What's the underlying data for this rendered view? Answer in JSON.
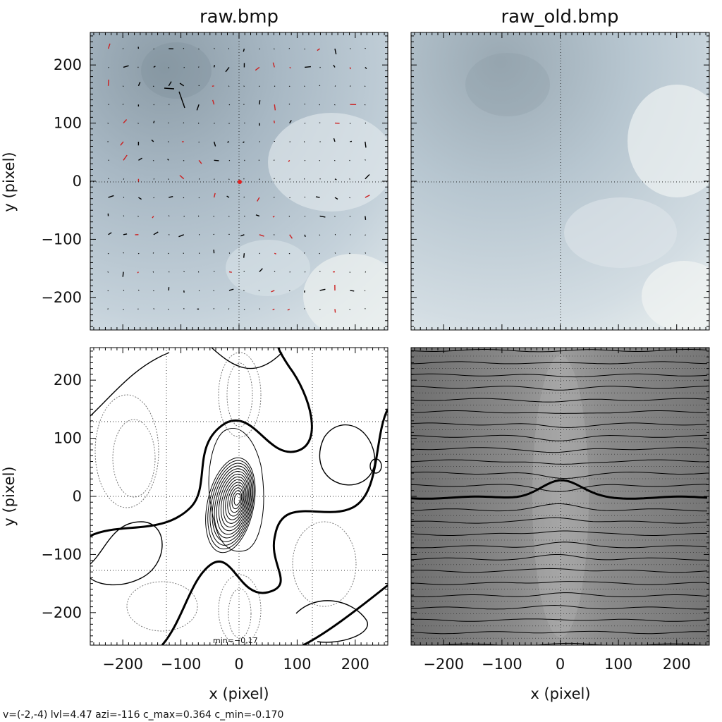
{
  "status_line": "v=(-2,-4) lvl=4.47 azi=-116 c_max=0.364 c_min=-0.170",
  "chart_data": [
    {
      "type": "image",
      "title": "raw.bmp",
      "xlabel": "",
      "ylabel": "y (pixel)",
      "xlim": [
        -256,
        256
      ],
      "ylim": [
        -256,
        256
      ],
      "yticks": [
        "200",
        "100",
        "0",
        "−100",
        "−200"
      ],
      "grid": "dotted crosshair at x=0, y=0",
      "overlay": "displacement vectors (black and red)",
      "marker": {
        "x": 0,
        "y": 0,
        "color": "#e02020"
      },
      "colors": {
        "sky": "#aebfcc",
        "vector": "#000000",
        "vector_alt": "#cc1f1f"
      }
    },
    {
      "type": "image",
      "title": "raw_old.bmp",
      "xlabel": "",
      "ylabel": "",
      "xlim": [
        -256,
        256
      ],
      "ylim": [
        -256,
        256
      ],
      "grid": "dotted crosshair at x=0, y=0"
    },
    {
      "type": "contour",
      "title": "",
      "xlabel": "x (pixel)",
      "ylabel": "y (pixel)",
      "xlim": [
        -256,
        256
      ],
      "ylim": [
        -256,
        256
      ],
      "xticks": [
        "−200",
        "−100",
        "0",
        "100",
        "200"
      ],
      "yticks": [
        "200",
        "100",
        "0",
        "−100",
        "−200"
      ],
      "annotation": "min=−0.17",
      "peak": {
        "x": -2,
        "y": -4,
        "value": 0.364
      },
      "min_value": -0.17,
      "grid": "dotted at ±125 and 0",
      "line_styles": {
        "positive": "solid",
        "zero": "bold",
        "negative": "dotted"
      }
    },
    {
      "type": "contour",
      "title": "",
      "xlabel": "x (pixel)",
      "ylabel": "",
      "xlim": [
        -256,
        256
      ],
      "ylim": [
        -256,
        256
      ],
      "xticks": [
        "−200",
        "−100",
        "0",
        "100",
        "200"
      ],
      "background": "grayscale",
      "lines": "horizontal level lines with peak at x=0",
      "colors": {
        "background": "#7c7c7c",
        "lines": "#000000"
      }
    }
  ]
}
